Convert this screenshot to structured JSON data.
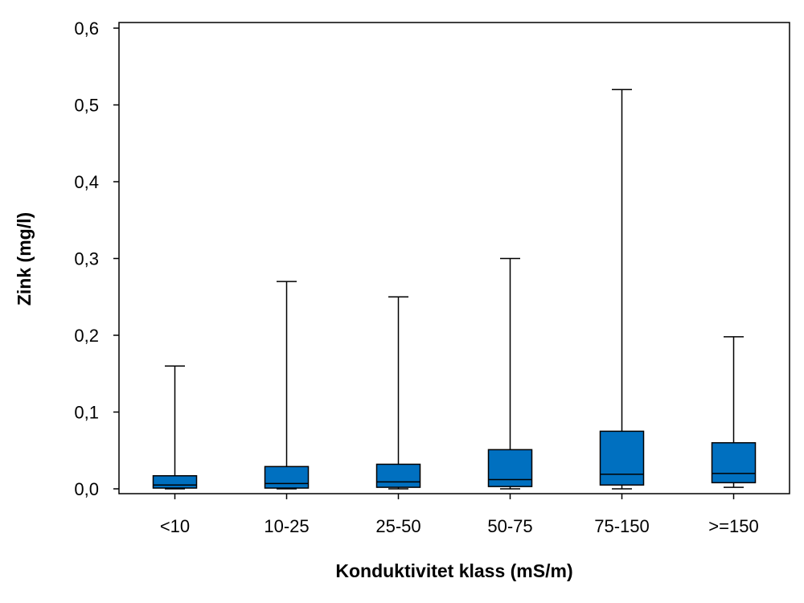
{
  "chart_data": {
    "type": "boxplot",
    "title": "",
    "xlabel": "Konduktivitet klass (mS/m)",
    "ylabel": "Zink (mg/l)",
    "ylim": [
      0,
      0.6
    ],
    "yticks": [
      "0,0",
      "0,1",
      "0,2",
      "0,3",
      "0,4",
      "0,5",
      "0,6"
    ],
    "ytick_values": [
      0,
      0.1,
      0.2,
      0.3,
      0.4,
      0.5,
      0.6
    ],
    "grid": false,
    "box_color": "#0070C0",
    "categories": [
      "<10",
      "10-25",
      "25-50",
      "50-75",
      "75-150",
      ">=150"
    ],
    "boxes": [
      {
        "min": 0.0,
        "q1": 0.001,
        "median": 0.005,
        "q3": 0.017,
        "max": 0.16
      },
      {
        "min": 0.0,
        "q1": 0.001,
        "median": 0.007,
        "q3": 0.029,
        "max": 0.27
      },
      {
        "min": 0.0,
        "q1": 0.002,
        "median": 0.009,
        "q3": 0.032,
        "max": 0.25
      },
      {
        "min": 0.0,
        "q1": 0.003,
        "median": 0.012,
        "q3": 0.051,
        "max": 0.3
      },
      {
        "min": 0.0,
        "q1": 0.005,
        "median": 0.019,
        "q3": 0.075,
        "max": 0.52
      },
      {
        "min": 0.002,
        "q1": 0.008,
        "median": 0.02,
        "q3": 0.06,
        "max": 0.198
      }
    ]
  }
}
